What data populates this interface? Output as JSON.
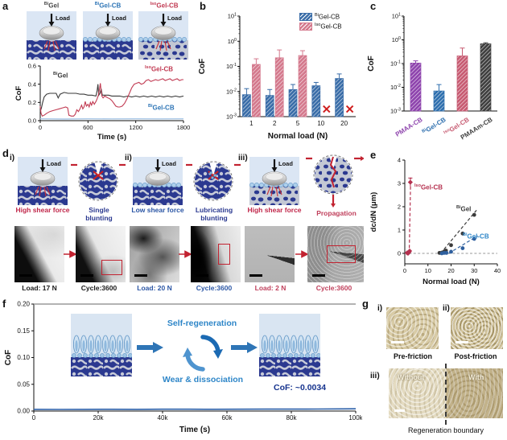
{
  "common": {
    "load_label": "Load"
  },
  "colors": {
    "black": "#1a1a1a",
    "dark": "#3a3a3a",
    "blue": "#2e75b6",
    "blue_dark": "#2b56a5",
    "light_blue_line": "#a9c7e6",
    "red": "#c13a52",
    "crimson": "#c0274a",
    "purple": "#8e44ad",
    "gray": "#4a4a4a",
    "navy_note": "#16338e",
    "cycle_blue": "#2e86c8"
  },
  "panels": {
    "a": {
      "letter": "a",
      "schematics": [
        {
          "sup": "Bi",
          "base": "Gel",
          "color": "#4a4a4a"
        },
        {
          "sup": "Bi",
          "base": "Gel-CB",
          "color": "#2e75b6"
        },
        {
          "sup": "Iso",
          "base": "Gel-CB",
          "color": "#c13a52"
        }
      ]
    },
    "b": {
      "letter": "b"
    },
    "c": {
      "letter": "c"
    },
    "d": {
      "letter": "d",
      "items": [
        {
          "num": "i)",
          "shear": "High shear force",
          "shear_color": "#c0274a",
          "inset": "Single blunting",
          "inset_color": "#2b3990",
          "load": "Load: 17 N",
          "cycle": "Cycle:3600",
          "cap_color": "#1a1a1a"
        },
        {
          "num": "ii)",
          "shear": "Low shear force",
          "shear_color": "#2b56a5",
          "inset": "Lubricating blunting",
          "inset_color": "#2b3990",
          "load": "Load: 20 N",
          "cycle": "Cycle:3600",
          "cap_color": "#2b56a5"
        },
        {
          "num": "iii)",
          "shear": "High shear force",
          "shear_color": "#c0274a",
          "inset": "Propagation",
          "inset_color": "#c0405c",
          "load": "Load: 2 N",
          "cycle": "Cycle:3600",
          "cap_color": "#c0405c"
        }
      ]
    },
    "e": {
      "letter": "e"
    },
    "f": {
      "letter": "f",
      "self_regen": "Self-regeneration",
      "wear": "Wear & dissociation",
      "cof_note": "CoF: ~0.0034"
    },
    "g": {
      "letter": "g",
      "items": [
        {
          "num": "i)",
          "caption": "Pre-friction"
        },
        {
          "num": "ii)",
          "caption": "Post-friction"
        },
        {
          "num": "iii)"
        }
      ],
      "without": "Without",
      "with": "With",
      "boundary": "Regeneration boundary"
    }
  },
  "chart_data": [
    {
      "id": "a",
      "type": "line",
      "xlabel": "Time (s)",
      "ylabel": "CoF",
      "xlim": [
        0,
        1800
      ],
      "ylim": [
        0,
        0.6
      ],
      "xticks": [
        {
          "v": 0,
          "l": "0"
        },
        {
          "v": 600,
          "l": "600"
        },
        {
          "v": 1200,
          "l": "1200"
        },
        {
          "v": 1800,
          "l": "1800"
        }
      ],
      "yticks": [
        {
          "v": 0.0,
          "l": "0.0"
        },
        {
          "v": 0.2,
          "l": "0.2"
        },
        {
          "v": 0.4,
          "l": "0.4"
        },
        {
          "v": 0.6,
          "l": "0.6"
        }
      ],
      "series": [
        {
          "sup": "Bi",
          "base": "Gel",
          "color": "#3a3a3a",
          "points": [
            [
              0,
              0.1
            ],
            [
              15,
              0.14
            ],
            [
              30,
              0.2
            ],
            [
              50,
              0.26
            ],
            [
              80,
              0.29
            ],
            [
              120,
              0.3
            ],
            [
              160,
              0.3
            ],
            [
              200,
              0.3
            ],
            [
              225,
              0.25
            ],
            [
              250,
              0.29
            ],
            [
              300,
              0.31
            ],
            [
              350,
              0.3
            ],
            [
              400,
              0.3
            ],
            [
              450,
              0.3
            ],
            [
              500,
              0.29
            ],
            [
              550,
              0.29
            ],
            [
              600,
              0.28
            ],
            [
              650,
              0.28
            ],
            [
              700,
              0.27
            ],
            [
              715,
              0.33
            ],
            [
              725,
              0.4
            ],
            [
              735,
              0.28
            ],
            [
              750,
              0.3
            ],
            [
              765,
              0.35
            ],
            [
              780,
              0.28
            ],
            [
              820,
              0.28
            ],
            [
              860,
              0.28
            ],
            [
              900,
              0.27
            ],
            [
              950,
              0.27
            ],
            [
              1000,
              0.27
            ],
            [
              1050,
              0.26
            ],
            [
              1100,
              0.27
            ],
            [
              1150,
              0.26
            ],
            [
              1200,
              0.27
            ],
            [
              1250,
              0.26
            ],
            [
              1300,
              0.27
            ],
            [
              1350,
              0.26
            ],
            [
              1400,
              0.27
            ],
            [
              1450,
              0.26
            ],
            [
              1500,
              0.27
            ],
            [
              1550,
              0.26
            ],
            [
              1600,
              0.27
            ],
            [
              1650,
              0.26
            ],
            [
              1700,
              0.27
            ],
            [
              1750,
              0.26
            ],
            [
              1800,
              0.27
            ]
          ]
        },
        {
          "sup": "Iso",
          "base": "Gel-CB",
          "color": "#c13a52",
          "points": [
            [
              0,
              0.16
            ],
            [
              10,
              0.08
            ],
            [
              25,
              0.05
            ],
            [
              50,
              0.06
            ],
            [
              80,
              0.08
            ],
            [
              120,
              0.1
            ],
            [
              160,
              0.11
            ],
            [
              200,
              0.12
            ],
            [
              240,
              0.13
            ],
            [
              280,
              0.14
            ],
            [
              320,
              0.15
            ],
            [
              345,
              0.14
            ],
            [
              360,
              0.06
            ],
            [
              390,
              0.05
            ],
            [
              420,
              0.05
            ],
            [
              440,
              0.07
            ],
            [
              460,
              0.12
            ],
            [
              480,
              0.1
            ],
            [
              500,
              0.13
            ],
            [
              520,
              0.17
            ],
            [
              535,
              0.13
            ],
            [
              550,
              0.15
            ],
            [
              565,
              0.21
            ],
            [
              580,
              0.16
            ],
            [
              600,
              0.18
            ],
            [
              615,
              0.15
            ],
            [
              630,
              0.2
            ],
            [
              645,
              0.17
            ],
            [
              660,
              0.21
            ],
            [
              680,
              0.18
            ],
            [
              700,
              0.21
            ],
            [
              715,
              0.24
            ],
            [
              730,
              0.28
            ],
            [
              745,
              0.35
            ],
            [
              755,
              0.41
            ],
            [
              765,
              0.32
            ],
            [
              775,
              0.27
            ],
            [
              790,
              0.25
            ],
            [
              810,
              0.27
            ],
            [
              830,
              0.26
            ],
            [
              850,
              0.25
            ],
            [
              875,
              0.24
            ],
            [
              900,
              0.22
            ],
            [
              925,
              0.19
            ],
            [
              950,
              0.16
            ],
            [
              975,
              0.15
            ],
            [
              1000,
              0.15
            ],
            [
              1030,
              0.16
            ],
            [
              1060,
              0.19
            ],
            [
              1090,
              0.24
            ],
            [
              1120,
              0.3
            ],
            [
              1150,
              0.36
            ],
            [
              1180,
              0.4
            ],
            [
              1210,
              0.41
            ],
            [
              1240,
              0.42
            ],
            [
              1270,
              0.4
            ],
            [
              1300,
              0.41
            ],
            [
              1330,
              0.44
            ],
            [
              1360,
              0.45
            ],
            [
              1390,
              0.43
            ],
            [
              1420,
              0.44
            ],
            [
              1450,
              0.45
            ],
            [
              1480,
              0.44
            ],
            [
              1510,
              0.45
            ],
            [
              1540,
              0.46
            ],
            [
              1570,
              0.44
            ],
            [
              1600,
              0.45
            ],
            [
              1630,
              0.46
            ],
            [
              1660,
              0.44
            ],
            [
              1690,
              0.45
            ],
            [
              1720,
              0.46
            ],
            [
              1750,
              0.44
            ],
            [
              1780,
              0.45
            ],
            [
              1800,
              0.45
            ]
          ]
        },
        {
          "sup": "Bi",
          "base": "Gel-CB",
          "color": "#a9c7e6",
          "points": [
            [
              0,
              0.02
            ],
            [
              300,
              0.018
            ],
            [
              600,
              0.02
            ],
            [
              900,
              0.019
            ],
            [
              1200,
              0.02
            ],
            [
              1500,
              0.019
            ],
            [
              1800,
              0.02
            ]
          ]
        }
      ]
    },
    {
      "id": "b",
      "type": "bar-log",
      "xlabel": "Normal load (N)",
      "ylabel": "CoF",
      "categories": [
        "1",
        "2",
        "5",
        "10",
        "20"
      ],
      "ylog_exponents": [
        1,
        0,
        -1,
        -2,
        -3
      ],
      "ylim_exp": [
        -3,
        1
      ],
      "series": [
        {
          "sup": "Bi",
          "base": "Gel-CB",
          "color": "#3a6da8",
          "values": [
            0.0075,
            0.007,
            0.012,
            0.017,
            0.033
          ],
          "err_hi": [
            0.013,
            0.012,
            0.019,
            0.023,
            0.05
          ],
          "failed": [
            false,
            false,
            false,
            false,
            false
          ]
        },
        {
          "sup": "Iso",
          "base": "Gel-CB",
          "color": "#d4798d",
          "values": [
            0.12,
            0.22,
            0.27,
            null,
            null
          ],
          "err_hi": [
            0.2,
            0.45,
            0.42,
            null,
            null
          ],
          "failed": [
            false,
            false,
            false,
            true,
            true
          ]
        }
      ],
      "failed_mark": {
        "color": "#cf1d1d",
        "value": 0.002
      }
    },
    {
      "id": "c",
      "type": "bar-log",
      "ylabel": "CoF",
      "ylog_exponents": [
        1,
        0,
        -1,
        -2,
        -3
      ],
      "ylim_exp": [
        -3,
        1
      ],
      "categories": [
        {
          "sup": "",
          "base": "PMAA-CB",
          "color": "#8e44ad"
        },
        {
          "sup": "Bi",
          "base": "Gel-CB",
          "color": "#2e6fae"
        },
        {
          "sup": "Iso",
          "base": "Gel-CB",
          "color": "#c75b72"
        },
        {
          "sup": "",
          "base": "PMAAm-CB",
          "color": "#3f3f3f"
        }
      ],
      "values": [
        0.105,
        0.007,
        0.21,
        0.68
      ],
      "err_hi": [
        0.13,
        0.013,
        0.45,
        0.75
      ]
    },
    {
      "id": "e",
      "type": "scatter",
      "xlabel": "Normal load (N)",
      "ylabel": "dc/dN (μm)",
      "xlim": [
        0,
        40
      ],
      "ylim": [
        -0.45,
        4
      ],
      "xticks": [
        {
          "v": 0,
          "l": "0"
        },
        {
          "v": 10,
          "l": "10"
        },
        {
          "v": 20,
          "l": "20"
        },
        {
          "v": 30,
          "l": "30"
        },
        {
          "v": 40,
          "l": "40"
        }
      ],
      "yticks": [
        {
          "v": 0,
          "l": "0"
        },
        {
          "v": 1,
          "l": "1"
        },
        {
          "v": 2,
          "l": "2"
        },
        {
          "v": 3,
          "l": "3"
        },
        {
          "v": 4,
          "l": "4"
        }
      ],
      "zero_line": true,
      "series": [
        {
          "sup": "Iso",
          "base": "Gel-CB",
          "color": "#b5314f",
          "marker": "diamond",
          "points": [
            [
              1,
              0.02
            ],
            [
              1.4,
              0.0
            ],
            [
              1.8,
              0.05
            ],
            [
              2.1,
              0.1
            ],
            [
              2.4,
              3.05
            ]
          ],
          "err_top": 0.18,
          "trend": [
            [
              1.9,
              0.0
            ],
            [
              2.55,
              3.25
            ]
          ]
        },
        {
          "sup": "Bi",
          "base": "Gel",
          "color": "#3a3a3a",
          "marker": "circle",
          "points": [
            [
              15,
              0.02
            ],
            [
              16,
              0.03
            ],
            [
              17,
              0.08
            ],
            [
              17.8,
              0.12
            ],
            [
              20,
              0.35
            ],
            [
              25,
              0.85
            ],
            [
              30,
              1.65
            ]
          ],
          "trend": [
            [
              15.5,
              0.0
            ],
            [
              31,
              1.85
            ]
          ]
        },
        {
          "sup": "Bi",
          "base": "Gel-CB",
          "color": "#2e5f9e",
          "marker": "circle",
          "points": [
            [
              16,
              0.0
            ],
            [
              17,
              0.02
            ],
            [
              18,
              0.02
            ],
            [
              20,
              0.07
            ],
            [
              25,
              0.22
            ],
            [
              30,
              0.62
            ]
          ],
          "trend": [
            [
              19,
              0.0
            ],
            [
              31.5,
              0.75
            ]
          ]
        }
      ]
    },
    {
      "id": "f",
      "type": "line",
      "xlabel": "Time (s)",
      "ylabel": "CoF",
      "xlim": [
        0,
        100000
      ],
      "ylim": [
        0,
        0.2
      ],
      "xticks": [
        {
          "v": 0,
          "l": "0"
        },
        {
          "v": 20000,
          "l": "20k"
        },
        {
          "v": 40000,
          "l": "40k"
        },
        {
          "v": 60000,
          "l": "60k"
        },
        {
          "v": 80000,
          "l": "80k"
        },
        {
          "v": 100000,
          "l": "100k"
        }
      ],
      "yticks": [
        {
          "v": 0.0,
          "l": "0.00"
        },
        {
          "v": 0.05,
          "l": "0.05"
        },
        {
          "v": 0.1,
          "l": "0.10"
        },
        {
          "v": 0.15,
          "l": "0.15"
        },
        {
          "v": 0.2,
          "l": "0.20"
        }
      ],
      "series": [
        {
          "sup": "Bi",
          "base": "Gel-CB",
          "color": "#2b5fa8",
          "points": [
            [
              0,
              0.0032
            ],
            [
              8000,
              0.003
            ],
            [
              16000,
              0.0031
            ],
            [
              24000,
              0.0033
            ],
            [
              32000,
              0.0031
            ],
            [
              40000,
              0.0035
            ],
            [
              48000,
              0.0034
            ],
            [
              56000,
              0.0033
            ],
            [
              64000,
              0.0034
            ],
            [
              72000,
              0.0036
            ],
            [
              80000,
              0.0036
            ],
            [
              88000,
              0.0038
            ],
            [
              96000,
              0.004
            ],
            [
              100000,
              0.0042
            ]
          ]
        }
      ]
    }
  ]
}
